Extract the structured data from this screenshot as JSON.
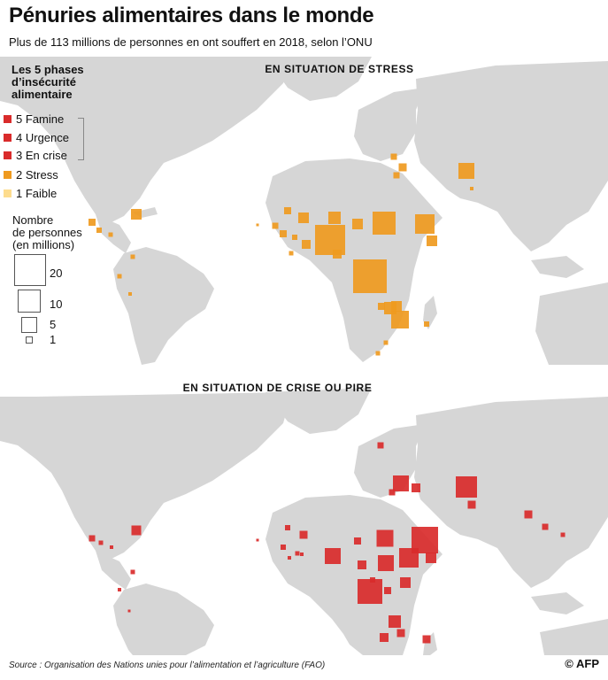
{
  "title": "Pénuries alimentaires dans le monde",
  "subtitle": "Plus de 113 millions de personnes en ont souffert en 2018, selon l’ONU",
  "map_stress_label": "En situation de stress",
  "map_crisis_label": "En situation de crise ou pire",
  "legend": {
    "title_lines": [
      "Les 5 phases",
      "d’insécurité",
      "alimentaire"
    ],
    "phases": [
      {
        "num": "5",
        "label": "Famine",
        "color": "#d92b2b"
      },
      {
        "num": "4",
        "label": "Urgence",
        "color": "#d92b2b"
      },
      {
        "num": "3",
        "label": "En crise",
        "color": "#d92b2b"
      },
      {
        "num": "2",
        "label": "Stress",
        "color": "#ef9a1f"
      },
      {
        "num": "1",
        "label": "Faible",
        "color": "#fddc8e"
      }
    ],
    "size_title_lines": [
      "Nombre",
      "de personnes",
      "(en millions)"
    ],
    "sizes": [
      {
        "value": "20",
        "label": "20"
      },
      {
        "value": "10",
        "label": "10"
      },
      {
        "value": "5",
        "label": "5"
      },
      {
        "value": "1",
        "label": "1"
      }
    ]
  },
  "colors": {
    "land": "#d6d6d6",
    "stress": "#ef9a1f",
    "crisis": "#d92b2b",
    "ocean": "#ffffff"
  },
  "source": "Source : Organisation des Nations unies pour l’alimentation et l’agriculture (FAO)",
  "copyright": "© AFP"
}
